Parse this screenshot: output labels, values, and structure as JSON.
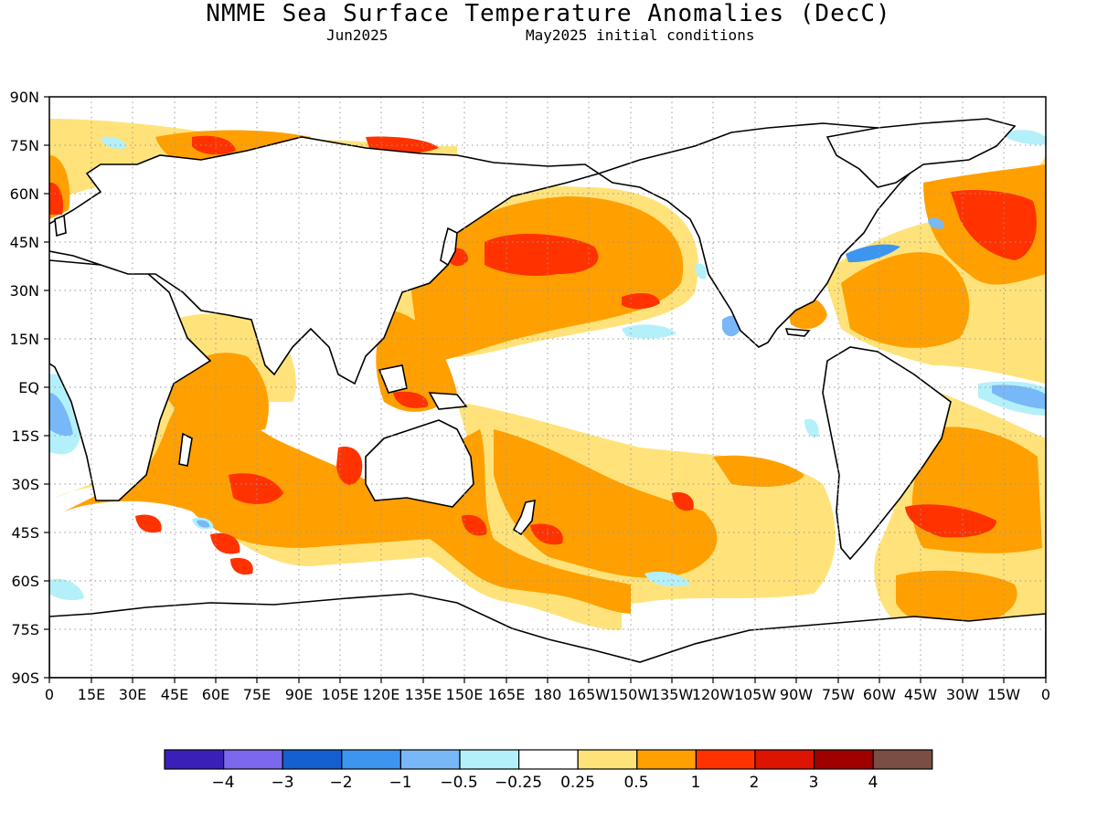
{
  "title": "NMME Sea Surface Temperature Anomalies (DecC)",
  "subtitle_left": "Jun2025",
  "subtitle_right": "May2025 initial conditions",
  "lat_labels": [
    "90N",
    "75N",
    "60N",
    "45N",
    "30N",
    "15N",
    "EQ",
    "15S",
    "30S",
    "45S",
    "60S",
    "75S",
    "90S"
  ],
  "lon_labels": [
    "0",
    "15E",
    "30E",
    "45E",
    "60E",
    "75E",
    "90E",
    "105E",
    "120E",
    "135E",
    "150E",
    "165E",
    "180",
    "165W",
    "150W",
    "135W",
    "120W",
    "105W",
    "90W",
    "75W",
    "60W",
    "45W",
    "30W",
    "15W",
    "0"
  ],
  "colorbar": {
    "colors": [
      "#3a20b8",
      "#7b68ee",
      "#1560d0",
      "#3c96f0",
      "#78b8f8",
      "#b4f0fa",
      "#ffffff",
      "#ffe37a",
      "#ffa000",
      "#ff3200",
      "#dc1400",
      "#a00000",
      "#7a4e42"
    ],
    "labels": [
      "−4",
      "−3",
      "−2",
      "−1",
      "−0.5",
      "−0.25",
      "0.25",
      "0.5",
      "1",
      "2",
      "3",
      "4"
    ]
  },
  "colors": {
    "pos_weak": "#ffe37a",
    "pos_mod": "#ffa000",
    "pos_strong": "#ff3200",
    "neg_weak": "#b4f0fa",
    "neg_mod": "#78b8f8",
    "neg_strong": "#3c96f0"
  }
}
